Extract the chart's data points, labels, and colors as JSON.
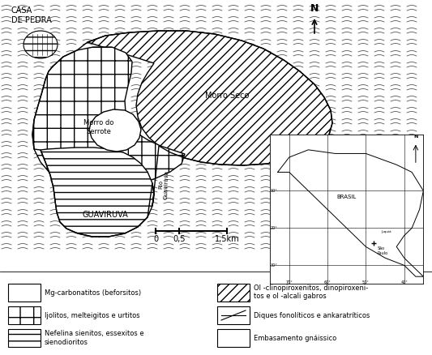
{
  "bg_color": "#ffffff",
  "legend_items_left": [
    {
      "label": "Mg-carbonatitos (beforsitos)",
      "hatch": "####"
    },
    {
      "label": "Ijolitos, melteigitos e urtitos",
      "hatch": "+"
    },
    {
      "label": "Nefelina sienitos, essexitos e\nsienodioritos",
      "hatch": "--"
    }
  ],
  "legend_items_right": [
    {
      "label": "Ol -clinopiroxenitos, dinopiroxenitos e ol -alcali gabros",
      "hatch": "///"
    },
    {
      "label": "Diques fonolíticos e ankaratríticos",
      "hatch": ""
    },
    {
      "label": "Embasamento gnáissico",
      "hatch": "~"
    }
  ],
  "texts": {
    "casa_de_pedra": "CASA\nDE PEDRA",
    "morro_do_serrote": "Morro do\nSerrote",
    "morro_seco": "Morro Seco",
    "guaviruva": "GUAVIRUVA",
    "rio_guaviruva": "Rio\nGuaviruva",
    "brasil": "BRASIL",
    "sao_paulo": "São\nPaulo",
    "juquia": "Juquiá",
    "north_main": "N",
    "north_inset": "N",
    "scale_0": "0",
    "scale_05": "0,5",
    "scale_15": "1,5km"
  },
  "lat_labels": [
    "10°",
    "20°",
    "30°"
  ],
  "lon_labels": [
    "70°",
    "60°",
    "50°",
    "40°"
  ]
}
